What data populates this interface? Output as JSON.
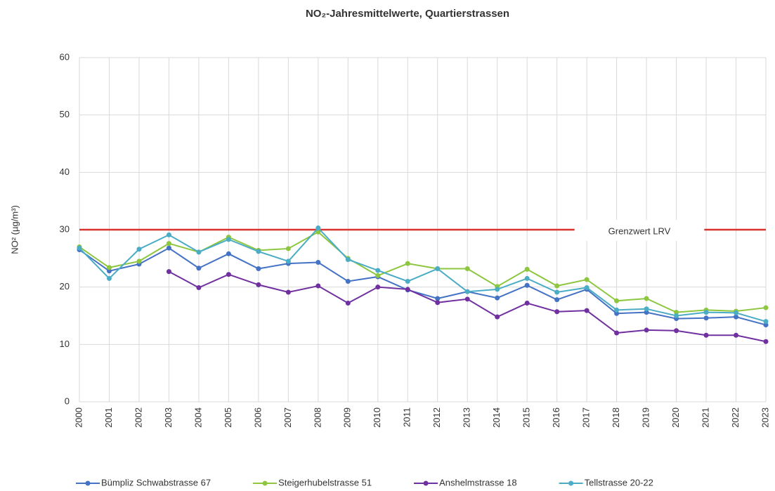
{
  "chart_data": {
    "type": "line",
    "title": "NO₂-Jahresmittelwerte, Quartierstrassen",
    "y_label": "NO² (µg/m³)",
    "categories": [
      "2000",
      "2001",
      "2002",
      "2003",
      "2004",
      "2005",
      "2006",
      "2007",
      "2008",
      "2009",
      "2010",
      "2011",
      "2012",
      "2013",
      "2014",
      "2015",
      "2016",
      "2017",
      "2018",
      "2019",
      "2020",
      "2021",
      "2022",
      "2023"
    ],
    "series": [
      {
        "name": "Bümpliz Schwabstrasse 67",
        "color": "#4472c4",
        "values": [
          26.5,
          22.8,
          24.0,
          26.8,
          23.3,
          25.8,
          23.2,
          24.1,
          24.3,
          21.0,
          21.8,
          19.5,
          18.0,
          19.2,
          18.1,
          20.3,
          17.8,
          19.6,
          15.4,
          15.6,
          14.5,
          14.6,
          14.8,
          13.4
        ]
      },
      {
        "name": "Steigerhubelstrasse 51",
        "color": "#8dc63f",
        "values": [
          27.0,
          23.4,
          24.5,
          27.6,
          26.1,
          28.7,
          26.4,
          26.7,
          29.6,
          25.0,
          22.0,
          24.1,
          23.2,
          23.2,
          20.1,
          23.1,
          20.2,
          21.3,
          17.6,
          18.0,
          15.6,
          16.0,
          15.8,
          16.4
        ]
      },
      {
        "name": "Anshelmstrasse 18",
        "color": "#7030a0",
        "values": [
          null,
          null,
          null,
          22.7,
          19.9,
          22.2,
          20.4,
          19.1,
          20.2,
          17.2,
          20.0,
          19.6,
          17.3,
          17.9,
          14.8,
          17.2,
          15.7,
          15.9,
          12.0,
          12.5,
          12.4,
          11.6,
          11.6,
          10.5
        ]
      },
      {
        "name": "Tellstrasse 20-22",
        "color": "#4bacc6",
        "values": [
          26.8,
          21.5,
          26.6,
          29.1,
          26.1,
          28.3,
          26.2,
          24.5,
          30.3,
          24.8,
          22.9,
          21.0,
          23.2,
          19.2,
          19.6,
          21.5,
          19.1,
          19.9,
          16.0,
          16.2,
          15.0,
          15.6,
          15.5,
          14.0
        ]
      }
    ],
    "reference_line": {
      "value": 30,
      "label": "Grenzwert LRV",
      "color": "#d9322b"
    },
    "ylim": [
      0,
      60
    ],
    "yticks": [
      0,
      10,
      20,
      30,
      40,
      50,
      60
    ],
    "grid": true,
    "legend": "bottom"
  }
}
